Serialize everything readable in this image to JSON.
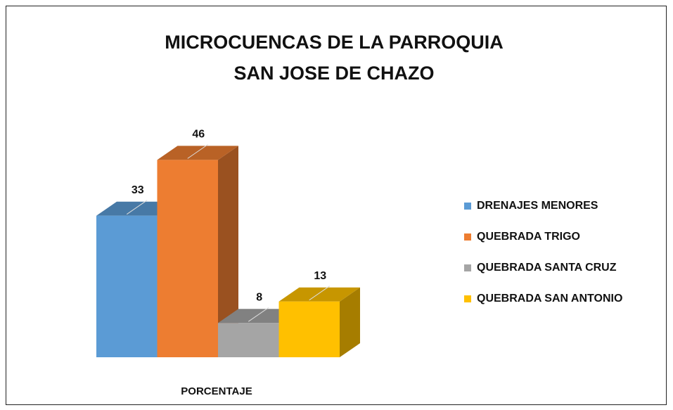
{
  "chart_data": {
    "type": "bar3d",
    "title": "MICROCUENCAS DE LA PARROQUIA SAN JOSE DE CHAZO",
    "categories": [
      "PORCENTAJE"
    ],
    "series": [
      {
        "name": "DRENAJES MENORES",
        "color": "#5b9bd5",
        "values": [
          33
        ]
      },
      {
        "name": "QUEBRADA TRIGO",
        "color": "#ed7d31",
        "values": [
          46
        ]
      },
      {
        "name": "QUEBRADA SANTA CRUZ",
        "color": "#a5a5a5",
        "values": [
          8
        ]
      },
      {
        "name": "QUEBRADA SAN ANTONIO",
        "color": "#ffc000",
        "values": [
          13
        ]
      }
    ],
    "legend": "right"
  }
}
